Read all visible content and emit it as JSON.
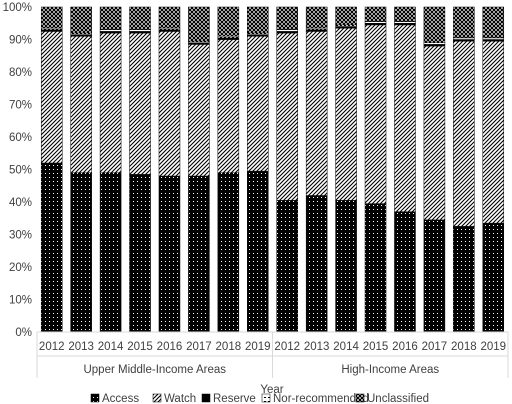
{
  "chart_data": {
    "type": "bar",
    "stacked": "percent",
    "title": "",
    "xlabel": "Year",
    "ylabel": "",
    "ylim": [
      0,
      100
    ],
    "yticks": [
      "0%",
      "10%",
      "20%",
      "30%",
      "40%",
      "50%",
      "60%",
      "70%",
      "80%",
      "90%",
      "100%"
    ],
    "grid": false,
    "legend_position": "bottom",
    "groups": [
      "Upper Middle-Income Areas",
      "High-Income Areas"
    ],
    "categories": [
      "2012",
      "2013",
      "2014",
      "2015",
      "2016",
      "2017",
      "2018",
      "2019",
      "2012",
      "2013",
      "2014",
      "2015",
      "2016",
      "2017",
      "2018",
      "2019"
    ],
    "series": [
      {
        "name": "Access",
        "values": [
          52,
          49,
          49,
          48.5,
          48,
          48,
          49,
          49.5,
          40.5,
          42,
          40.5,
          39.5,
          37,
          34.5,
          32.5,
          33.5
        ]
      },
      {
        "name": "Watch",
        "values": [
          40.5,
          42,
          43,
          43.5,
          44.5,
          40.5,
          41,
          41.5,
          51.5,
          50.5,
          53,
          55,
          57.5,
          53.5,
          57,
          56
        ]
      },
      {
        "name": "Reserve",
        "values": [
          0.5,
          0.5,
          0.5,
          0.5,
          0.5,
          0.5,
          0.5,
          0.5,
          0.5,
          0.5,
          0.5,
          0.5,
          0.5,
          0.5,
          0.5,
          0.5
        ]
      },
      {
        "name": "Nor-recommended",
        "values": [
          0.5,
          0.5,
          0.5,
          0.5,
          0.5,
          0.5,
          0.5,
          0.5,
          0.5,
          0.5,
          0.5,
          0.5,
          0.5,
          0.5,
          0.5,
          0.5
        ]
      },
      {
        "name": "Unclassified",
        "values": [
          6.5,
          8,
          7,
          7,
          6.5,
          10.5,
          9,
          8,
          7,
          6.5,
          5.5,
          4.5,
          4.5,
          11,
          9.5,
          9.5
        ]
      }
    ]
  }
}
